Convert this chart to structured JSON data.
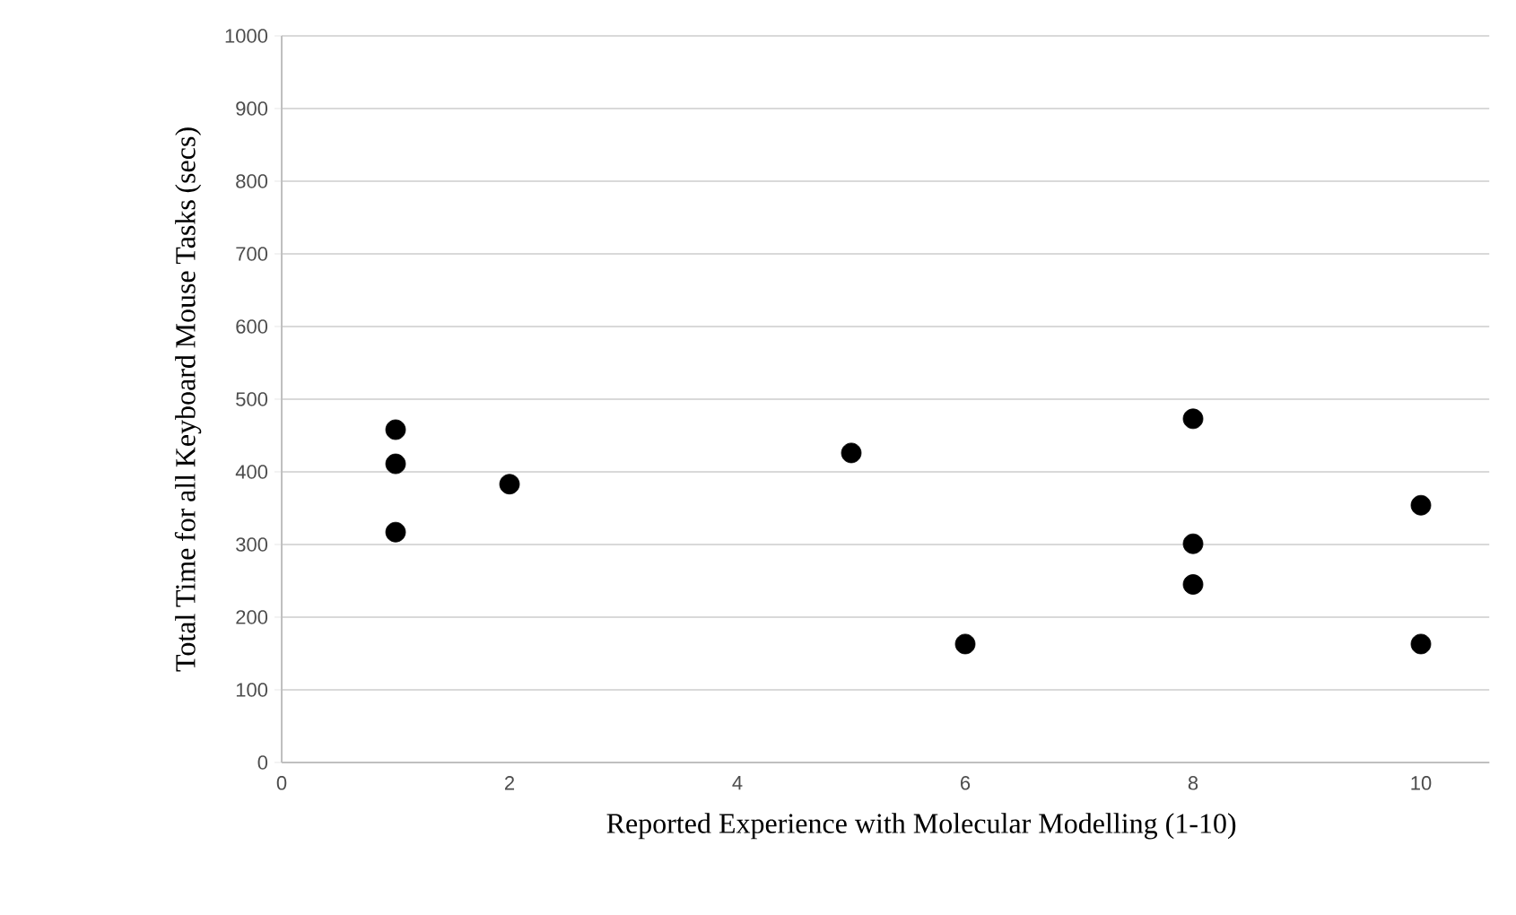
{
  "chart_data": {
    "type": "scatter",
    "xlabel": "Reported Experience  with Molecular Modelling (1-10)",
    "ylabel": "Total Time for all Keyboard Mouse Tasks (secs)",
    "x": [
      1,
      1,
      1,
      2,
      5,
      6,
      8,
      8,
      8,
      10,
      10
    ],
    "values": [
      458,
      411,
      317,
      383,
      426,
      163,
      473,
      301,
      245,
      354,
      163
    ],
    "color": "#000000",
    "xlim": [
      0,
      10.6
    ],
    "xticks": [
      0,
      2,
      4,
      6,
      8,
      10
    ],
    "ylim": [
      0,
      1000
    ],
    "yticks": [
      0,
      100,
      200,
      300,
      400,
      500,
      600,
      700,
      800,
      900,
      1000
    ],
    "grid": "y"
  }
}
